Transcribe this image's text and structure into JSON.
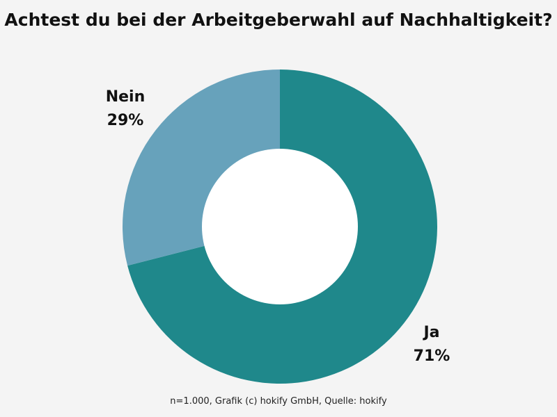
{
  "chart_data": {
    "type": "pie",
    "variant": "donut",
    "title": "Achtest du bei der Arbeitgeberwahl auf Nachhaltigkeit?",
    "categories": [
      "Ja",
      "Nein"
    ],
    "values": [
      71,
      29
    ],
    "value_labels": [
      "71%",
      "29%"
    ],
    "colors": [
      "#1f888b",
      "#67a2bb"
    ],
    "background": "#f4f4f4",
    "footnote": "n=1.000, Grafik (c) hokify GmbH, Quelle: hokify"
  }
}
